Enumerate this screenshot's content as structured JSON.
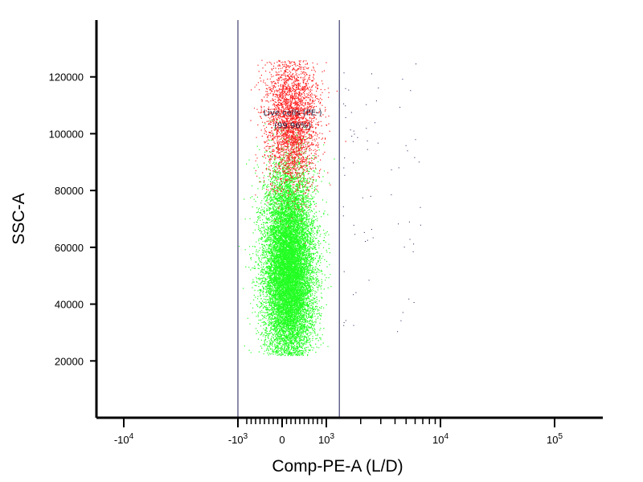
{
  "chart_data": {
    "type": "scatter",
    "title": "",
    "xlabel": "Comp-PE-A (L/D)",
    "ylabel": "SSC-A",
    "x_scale": "biexponential",
    "xlim": [
      -20000,
      200000
    ],
    "ylim": [
      0,
      140000
    ],
    "y_ticks": [
      {
        "value": 20000,
        "label": "20000"
      },
      {
        "value": 40000,
        "label": "40000"
      },
      {
        "value": 60000,
        "label": "60000"
      },
      {
        "value": 80000,
        "label": "80000"
      },
      {
        "value": 100000,
        "label": "100000"
      },
      {
        "value": 120000,
        "label": "120000"
      }
    ],
    "x_ticks": [
      {
        "value": -10000,
        "base": "-10",
        "exp": "4"
      },
      {
        "value": -1000,
        "base": "-10",
        "exp": "3"
      },
      {
        "value": 0,
        "base": "0",
        "exp": ""
      },
      {
        "value": 1000,
        "base": "10",
        "exp": "3"
      },
      {
        "value": 10000,
        "base": "10",
        "exp": "4"
      },
      {
        "value": 100000,
        "base": "10",
        "exp": "5"
      }
    ],
    "gate": {
      "name": "Live cells (PE-)",
      "percent_label": "(99.96%)",
      "x_range": [
        -1000,
        1300
      ]
    },
    "colors": {
      "dense_population": "#22ff22",
      "upper_population": "#ff2020",
      "outside_gate": "#1a1a55",
      "gate_line": "#1a1a55",
      "axis": "#000000"
    },
    "populations": [
      {
        "name": "",
        "color": "#22ff22",
        "x_center": 150,
        "x_spread": 280,
        "y_center": 52000,
        "y_spread": 18000,
        "y_range": [
          22000,
          105000
        ],
        "count": 14000
      },
      {
        "name": "",
        "color": "#ff2020",
        "x_center": 200,
        "x_spread": 300,
        "y_center": 105000,
        "y_spread": 12000,
        "y_range": [
          28000,
          126000
        ],
        "count": 3000
      }
    ]
  }
}
